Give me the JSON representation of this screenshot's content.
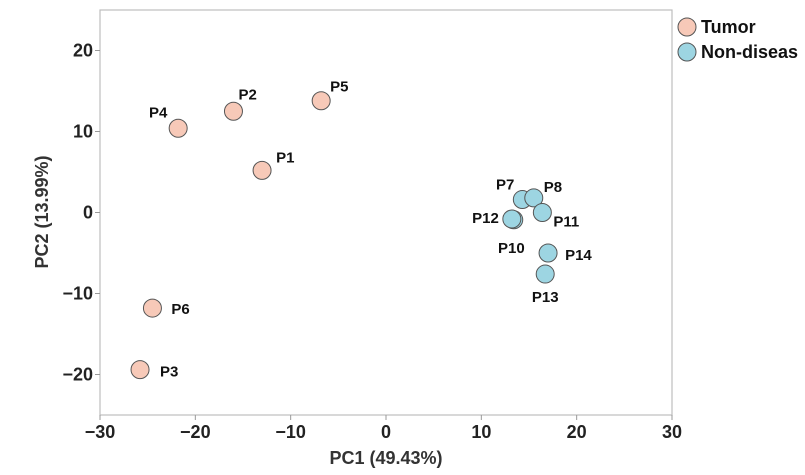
{
  "chart_data": {
    "type": "scatter",
    "xlabel": "PC1 (49.43%)",
    "ylabel": "PC2 (13.99%)",
    "xlim": [
      -30,
      30
    ],
    "ylim": [
      -25,
      25
    ],
    "x_ticks": [
      -30,
      -20,
      -10,
      0,
      10,
      20,
      30
    ],
    "y_ticks": [
      -20,
      -10,
      0,
      10,
      20
    ],
    "x_tick_labels": [
      "−30",
      "−20",
      "−10",
      "0",
      "10",
      "20",
      "30"
    ],
    "y_tick_labels": [
      "−20",
      "−10",
      "0",
      "10",
      "20"
    ],
    "grid": false,
    "legend_position": "outside-top-right",
    "series": [
      {
        "name": "Tumor",
        "color": "#f7c9b8",
        "points": [
          {
            "label": "P1",
            "x": -13.0,
            "y": 5.2
          },
          {
            "label": "P2",
            "x": -16.0,
            "y": 12.5
          },
          {
            "label": "P3",
            "x": -25.8,
            "y": -19.4
          },
          {
            "label": "P4",
            "x": -21.8,
            "y": 10.4
          },
          {
            "label": "P5",
            "x": -6.8,
            "y": 13.8
          },
          {
            "label": "P6",
            "x": -24.5,
            "y": -11.8
          }
        ]
      },
      {
        "name": "Non-diseas",
        "color": "#9dd5e2",
        "points": [
          {
            "label": "P7",
            "x": 14.3,
            "y": 1.6
          },
          {
            "label": "P8",
            "x": 15.5,
            "y": 1.8
          },
          {
            "label": "P10",
            "x": 13.4,
            "y": -0.9
          },
          {
            "label": "P11",
            "x": 16.4,
            "y": 0.0
          },
          {
            "label": "P12",
            "x": 13.2,
            "y": -0.8
          },
          {
            "label": "P13",
            "x": 16.7,
            "y": -7.6
          },
          {
            "label": "P14",
            "x": 17.0,
            "y": -5.0
          }
        ]
      }
    ]
  }
}
